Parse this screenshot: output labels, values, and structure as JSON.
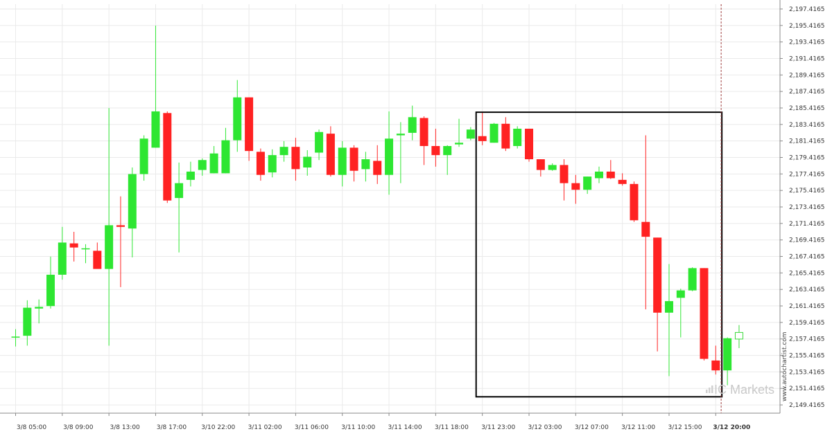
{
  "chart_data": {
    "type": "candlestick",
    "title": "",
    "x_tick_labels": [
      "3/8 05:00",
      "3/8 09:00",
      "3/8 13:00",
      "3/8 17:00",
      "3/10 22:00",
      "3/11 02:00",
      "3/11 06:00",
      "3/11 10:00",
      "3/11 14:00",
      "3/11 18:00",
      "3/11 23:00",
      "3/12 03:00",
      "3/12 07:00",
      "3/12 11:00",
      "3/12 15:00",
      "3/12 20:00"
    ],
    "x_tick_candle_index": [
      0,
      4,
      8,
      12,
      16,
      20,
      24,
      28,
      32,
      36,
      40,
      44,
      48,
      52,
      56,
      60
    ],
    "highlighted_x_tick": "3/12 20:00",
    "y_tick_labels": [
      "2,149.4165",
      "2,151.4165",
      "2,153.4165",
      "2,155.4165",
      "2,157.4165",
      "2,159.4165",
      "2,161.4165",
      "2,163.4165",
      "2,165.4165",
      "2,167.4165",
      "2,169.4165",
      "2,171.4165",
      "2,173.4165",
      "2,175.4165",
      "2,177.4165",
      "2,179.4165",
      "2,181.4165",
      "2,183.4165",
      "2,185.4165",
      "2,187.4165",
      "2,189.4165",
      "2,191.4165",
      "2,193.4165",
      "2,195.4165",
      "2,197.4165"
    ],
    "ylim": [
      2148.4165,
      2198.0
    ],
    "candles": [
      {
        "o": 2157.7,
        "h": 2158.6,
        "l": 2156.5,
        "c": 2157.7
      },
      {
        "o": 2157.8,
        "h": 2162.1,
        "l": 2156.6,
        "c": 2161.2
      },
      {
        "o": 2161.1,
        "h": 2162.2,
        "l": 2159.3,
        "c": 2161.3
      },
      {
        "o": 2161.4,
        "h": 2167.4,
        "l": 2161.1,
        "c": 2165.2
      },
      {
        "o": 2165.2,
        "h": 2171.0,
        "l": 2164.6,
        "c": 2169.1
      },
      {
        "o": 2169.0,
        "h": 2170.4,
        "l": 2166.8,
        "c": 2168.5
      },
      {
        "o": 2168.4,
        "h": 2168.9,
        "l": 2166.6,
        "c": 2168.4
      },
      {
        "o": 2168.1,
        "h": 2169.1,
        "l": 2166.0,
        "c": 2165.9
      },
      {
        "o": 2165.9,
        "h": 2185.4,
        "l": 2156.6,
        "c": 2171.2
      },
      {
        "o": 2171.2,
        "h": 2174.7,
        "l": 2163.7,
        "c": 2171.0
      },
      {
        "o": 2170.8,
        "h": 2178.2,
        "l": 2167.3,
        "c": 2177.4
      },
      {
        "o": 2177.4,
        "h": 2182.1,
        "l": 2176.6,
        "c": 2181.7
      },
      {
        "o": 2180.6,
        "h": 2195.4,
        "l": 2180.6,
        "c": 2185.0
      },
      {
        "o": 2184.8,
        "h": 2185.0,
        "l": 2173.9,
        "c": 2174.2
      },
      {
        "o": 2174.5,
        "h": 2178.8,
        "l": 2167.9,
        "c": 2176.3
      },
      {
        "o": 2176.7,
        "h": 2178.9,
        "l": 2175.9,
        "c": 2177.7
      },
      {
        "o": 2177.9,
        "h": 2179.3,
        "l": 2177.2,
        "c": 2179.1
      },
      {
        "o": 2177.5,
        "h": 2180.8,
        "l": 2177.5,
        "c": 2179.9
      },
      {
        "o": 2177.5,
        "h": 2183.0,
        "l": 2177.5,
        "c": 2181.5
      },
      {
        "o": 2181.5,
        "h": 2188.8,
        "l": 2180.1,
        "c": 2186.7
      },
      {
        "o": 2186.7,
        "h": 2186.7,
        "l": 2179.0,
        "c": 2180.2
      },
      {
        "o": 2180.1,
        "h": 2180.5,
        "l": 2176.6,
        "c": 2177.3
      },
      {
        "o": 2177.6,
        "h": 2180.4,
        "l": 2177.0,
        "c": 2179.7
      },
      {
        "o": 2179.7,
        "h": 2181.4,
        "l": 2178.9,
        "c": 2180.7
      },
      {
        "o": 2180.7,
        "h": 2181.8,
        "l": 2176.6,
        "c": 2178.0
      },
      {
        "o": 2178.2,
        "h": 2180.3,
        "l": 2177.2,
        "c": 2179.5
      },
      {
        "o": 2180.0,
        "h": 2182.8,
        "l": 2179.1,
        "c": 2182.5
      },
      {
        "o": 2182.3,
        "h": 2183.2,
        "l": 2177.1,
        "c": 2177.3
      },
      {
        "o": 2177.3,
        "h": 2181.4,
        "l": 2175.9,
        "c": 2180.6
      },
      {
        "o": 2180.6,
        "h": 2180.9,
        "l": 2176.5,
        "c": 2177.8
      },
      {
        "o": 2178.0,
        "h": 2180.1,
        "l": 2176.5,
        "c": 2179.2
      },
      {
        "o": 2179.0,
        "h": 2180.9,
        "l": 2176.2,
        "c": 2177.3
      },
      {
        "o": 2177.3,
        "h": 2185.0,
        "l": 2174.9,
        "c": 2181.7
      },
      {
        "o": 2182.1,
        "h": 2183.7,
        "l": 2176.3,
        "c": 2182.3
      },
      {
        "o": 2182.4,
        "h": 2185.7,
        "l": 2181.5,
        "c": 2184.3
      },
      {
        "o": 2184.2,
        "h": 2184.4,
        "l": 2178.5,
        "c": 2180.8
      },
      {
        "o": 2180.8,
        "h": 2182.9,
        "l": 2178.3,
        "c": 2179.7
      },
      {
        "o": 2179.7,
        "h": 2180.9,
        "l": 2177.3,
        "c": 2180.8
      },
      {
        "o": 2181.0,
        "h": 2184.1,
        "l": 2180.7,
        "c": 2181.2
      },
      {
        "o": 2181.7,
        "h": 2183.1,
        "l": 2181.5,
        "c": 2182.8
      },
      {
        "o": 2182.0,
        "h": 2184.9,
        "l": 2180.9,
        "c": 2181.4
      },
      {
        "o": 2181.2,
        "h": 2183.6,
        "l": 2181.2,
        "c": 2183.5
      },
      {
        "o": 2183.5,
        "h": 2184.3,
        "l": 2180.2,
        "c": 2180.5
      },
      {
        "o": 2180.8,
        "h": 2183.2,
        "l": 2180.5,
        "c": 2182.9
      },
      {
        "o": 2182.9,
        "h": 2182.9,
        "l": 2178.9,
        "c": 2179.2
      },
      {
        "o": 2179.2,
        "h": 2179.2,
        "l": 2177.1,
        "c": 2177.9
      },
      {
        "o": 2177.9,
        "h": 2178.7,
        "l": 2177.8,
        "c": 2178.5
      },
      {
        "o": 2178.5,
        "h": 2179.2,
        "l": 2174.2,
        "c": 2176.3
      },
      {
        "o": 2176.3,
        "h": 2177.3,
        "l": 2173.8,
        "c": 2175.5
      },
      {
        "o": 2175.5,
        "h": 2177.1,
        "l": 2175.0,
        "c": 2177.1
      },
      {
        "o": 2176.9,
        "h": 2178.3,
        "l": 2176.3,
        "c": 2177.7
      },
      {
        "o": 2177.7,
        "h": 2179.1,
        "l": 2176.8,
        "c": 2176.9
      },
      {
        "o": 2176.7,
        "h": 2177.5,
        "l": 2176.0,
        "c": 2176.2
      },
      {
        "o": 2176.2,
        "h": 2176.5,
        "l": 2171.6,
        "c": 2171.8
      },
      {
        "o": 2171.6,
        "h": 2182.1,
        "l": 2161.0,
        "c": 2169.8
      },
      {
        "o": 2169.7,
        "h": 2169.7,
        "l": 2155.9,
        "c": 2160.6
      },
      {
        "o": 2160.6,
        "h": 2166.5,
        "l": 2152.9,
        "c": 2162.0
      },
      {
        "o": 2162.4,
        "h": 2163.5,
        "l": 2157.6,
        "c": 2163.3
      },
      {
        "o": 2163.3,
        "h": 2166.1,
        "l": 2163.2,
        "c": 2166.0
      },
      {
        "o": 2166.0,
        "h": 2166.0,
        "l": 2154.8,
        "c": 2155.0
      },
      {
        "o": 2154.8,
        "h": 2156.6,
        "l": 2153.1,
        "c": 2153.6
      },
      {
        "o": 2153.6,
        "h": 2157.6,
        "l": 2151.8,
        "c": 2157.5
      },
      {
        "o": 2157.4,
        "h": 2159.1,
        "l": 2156.3,
        "c": 2158.2
      }
    ],
    "pattern_box": {
      "from_candle": 40,
      "to_candle": 61,
      "price_high": 2184.9,
      "price_low": 2150.4
    },
    "current_candle_index": 61,
    "colors": {
      "up": "#2ee632",
      "down": "#ff2222",
      "last_outline": "#3ad93a",
      "grid": "#eaeaea",
      "box": "#000000",
      "cursor_line": "#a04040"
    }
  },
  "watermark": "www.autochartist.com",
  "brand": {
    "prefix": "IC",
    "name": "Markets"
  }
}
